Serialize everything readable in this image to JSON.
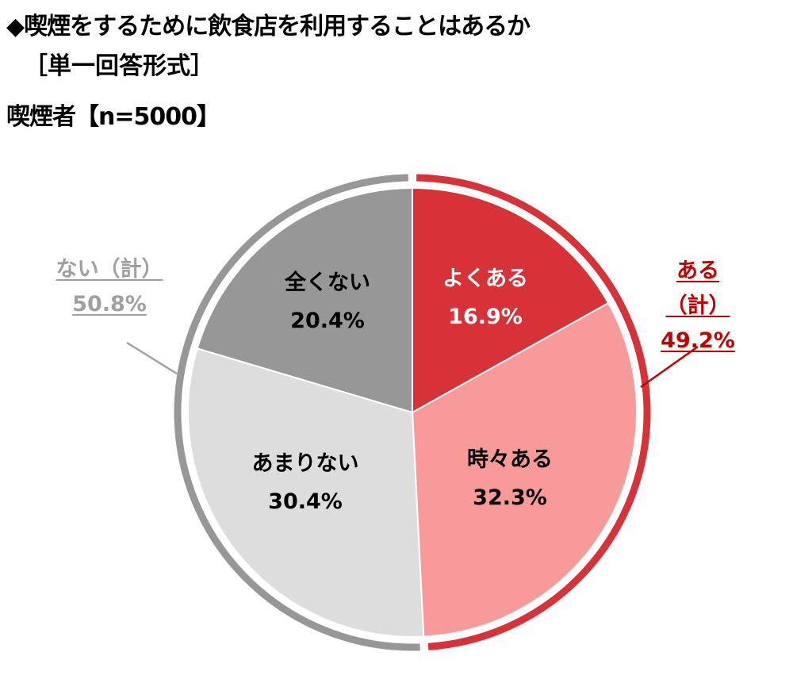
{
  "title": "◆喫煙をするために飲食店を利用することはあるか",
  "subtitle": "［単一回答形式］",
  "sample": "喫煙者【n=5000】",
  "chart_data": {
    "type": "pie",
    "start": "top",
    "direction": "clockwise",
    "categories": [
      "よくある",
      "時々ある",
      "あまりない",
      "全くない"
    ],
    "values": [
      16.9,
      32.3,
      30.4,
      20.4
    ],
    "labels": [
      "16.9%",
      "32.3%",
      "30.4%",
      "20.4%"
    ],
    "colors": [
      "#d63237",
      "#f89a9a",
      "#dddddd",
      "#979797"
    ],
    "label_colors": [
      "#ffffff",
      "#000000",
      "#000000",
      "#000000"
    ],
    "groups": [
      {
        "name": "ある（計）",
        "value": 49.2,
        "label": "49.2%",
        "color": "#c00000",
        "ring_color": "#d63237",
        "members": [
          "よくある",
          "時々ある"
        ]
      },
      {
        "name": "ない（計）",
        "value": 50.8,
        "label": "50.8%",
        "color": "#a0a0a0",
        "ring_color": "#979797",
        "members": [
          "あまりない",
          "全くない"
        ]
      }
    ]
  }
}
